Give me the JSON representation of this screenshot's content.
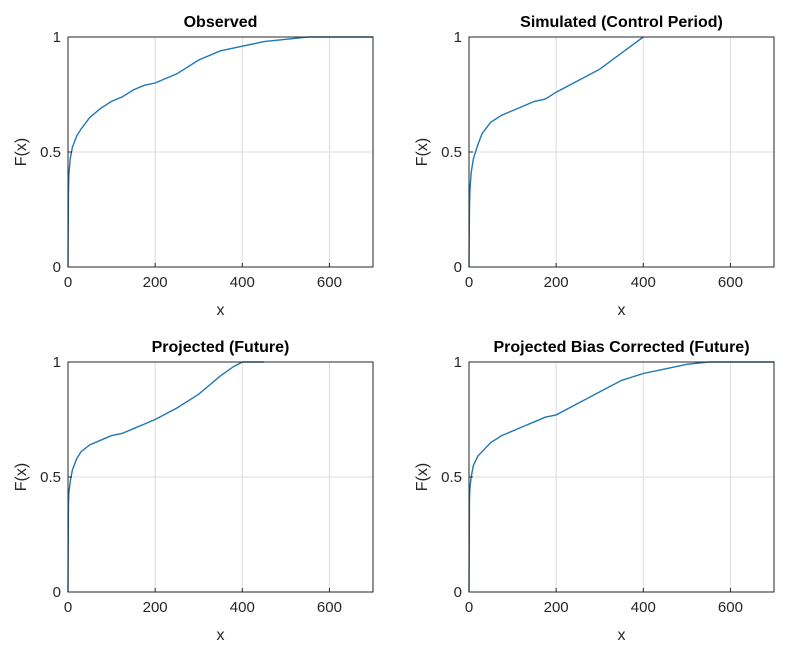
{
  "chart_data": [
    {
      "type": "line",
      "title": "Observed",
      "xlabel": "x",
      "ylabel": "F(x)",
      "xlim": [
        0,
        700
      ],
      "ylim": [
        0,
        1
      ],
      "xticks": [
        "0",
        "200",
        "400",
        "600"
      ],
      "yticks": [
        "0",
        "0.5",
        "1"
      ],
      "grid": true,
      "color": "#1f77b4",
      "x": [
        0,
        1,
        2,
        5,
        10,
        20,
        30,
        50,
        75,
        100,
        125,
        150,
        175,
        200,
        250,
        300,
        350,
        400,
        450,
        500,
        550,
        600,
        700
      ],
      "y": [
        0,
        0.32,
        0.4,
        0.47,
        0.52,
        0.57,
        0.6,
        0.65,
        0.69,
        0.72,
        0.74,
        0.77,
        0.79,
        0.8,
        0.84,
        0.9,
        0.94,
        0.96,
        0.98,
        0.99,
        1,
        1,
        1
      ]
    },
    {
      "type": "line",
      "title": "Simulated (Control Period)",
      "xlabel": "x",
      "ylabel": "F(x)",
      "xlim": [
        0,
        700
      ],
      "ylim": [
        0,
        1
      ],
      "xticks": [
        "0",
        "200",
        "400",
        "600"
      ],
      "yticks": [
        "0",
        "0.5",
        "1"
      ],
      "grid": true,
      "color": "#1f77b4",
      "x": [
        0,
        1,
        2,
        5,
        10,
        20,
        30,
        50,
        75,
        100,
        125,
        150,
        175,
        200,
        250,
        300,
        350,
        400
      ],
      "y": [
        0,
        0.25,
        0.33,
        0.41,
        0.47,
        0.53,
        0.58,
        0.63,
        0.66,
        0.68,
        0.7,
        0.72,
        0.73,
        0.76,
        0.81,
        0.86,
        0.93,
        1
      ]
    },
    {
      "type": "line",
      "title": "Projected (Future)",
      "xlabel": "x",
      "ylabel": "F(x)",
      "xlim": [
        0,
        700
      ],
      "ylim": [
        0,
        1
      ],
      "xticks": [
        "0",
        "200",
        "400",
        "600"
      ],
      "yticks": [
        "0",
        "0.5",
        "1"
      ],
      "grid": true,
      "color": "#1f77b4",
      "x": [
        0,
        1,
        2,
        5,
        10,
        20,
        30,
        50,
        75,
        100,
        125,
        150,
        175,
        200,
        250,
        300,
        350,
        380,
        400,
        450
      ],
      "y": [
        0,
        0.38,
        0.43,
        0.48,
        0.53,
        0.58,
        0.61,
        0.64,
        0.66,
        0.68,
        0.69,
        0.71,
        0.73,
        0.75,
        0.8,
        0.86,
        0.94,
        0.98,
        1,
        1
      ]
    },
    {
      "type": "line",
      "title": "Projected Bias Corrected (Future)",
      "xlabel": "x",
      "ylabel": "F(x)",
      "xlim": [
        0,
        700
      ],
      "ylim": [
        0,
        1
      ],
      "xticks": [
        "0",
        "200",
        "400",
        "600"
      ],
      "yticks": [
        "0",
        "0.5",
        "1"
      ],
      "grid": true,
      "color": "#1f77b4",
      "x": [
        0,
        1,
        2,
        5,
        10,
        20,
        30,
        50,
        75,
        100,
        125,
        150,
        175,
        200,
        250,
        300,
        350,
        400,
        450,
        500,
        550,
        600,
        700
      ],
      "y": [
        0,
        0.4,
        0.45,
        0.5,
        0.55,
        0.59,
        0.61,
        0.65,
        0.68,
        0.7,
        0.72,
        0.74,
        0.76,
        0.77,
        0.82,
        0.87,
        0.92,
        0.95,
        0.97,
        0.99,
        1,
        1,
        1
      ]
    }
  ]
}
